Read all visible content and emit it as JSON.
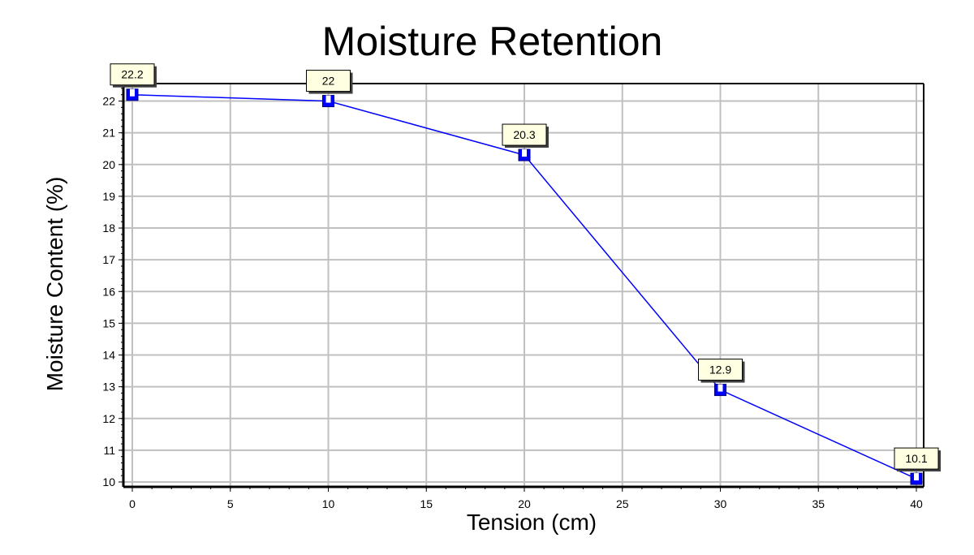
{
  "chart_data": {
    "type": "line",
    "title": "Moisture Retention",
    "xlabel": "Tension (cm)",
    "ylabel": "Moisture Content (%)",
    "xlim": [
      0,
      40
    ],
    "ylim": [
      10,
      22.5
    ],
    "x_ticks": [
      0,
      5,
      10,
      15,
      20,
      25,
      30,
      35,
      40
    ],
    "y_ticks": [
      10,
      11,
      12,
      13,
      14,
      15,
      16,
      17,
      18,
      19,
      20,
      21,
      22
    ],
    "grid": true,
    "legend": "none",
    "series": [
      {
        "x": [
          0,
          10,
          20,
          30,
          40
        ],
        "values": [
          22.2,
          22,
          20.3,
          12.9,
          10.1
        ],
        "labels": [
          "22.2",
          "22",
          "20.3",
          "12.9",
          "10.1"
        ],
        "color": "#0000ff"
      }
    ],
    "colors": {
      "line": "#0000ff",
      "marker": "#0000ff",
      "label_background": "#ffffe1",
      "grid": "#c0c0c0"
    }
  }
}
